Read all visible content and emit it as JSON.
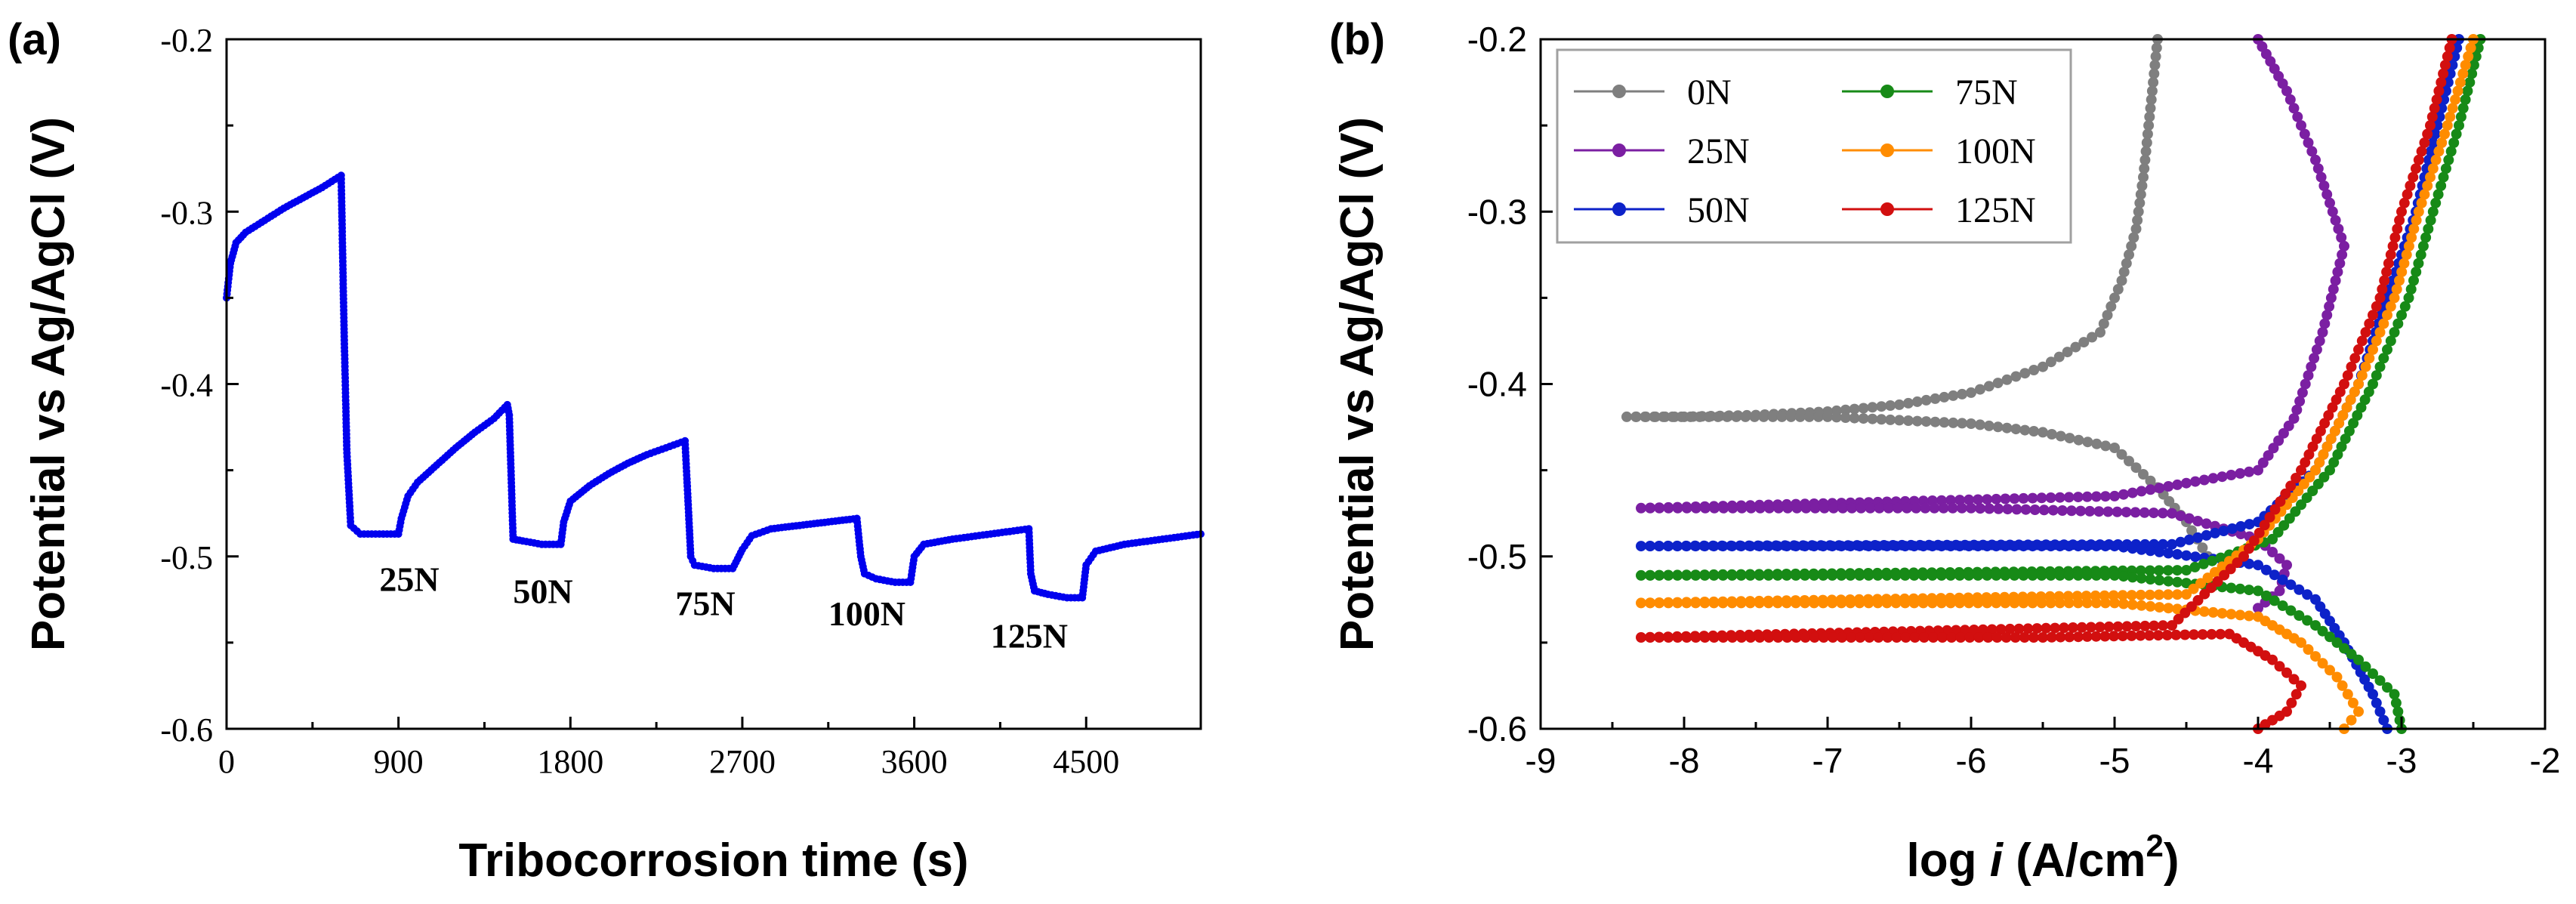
{
  "chart_data": [
    {
      "panel_label": "(a)",
      "type": "scatter",
      "xlabel": "Tribocorrosion time (s)",
      "ylabel": "Potential vs Ag/AgCl (V)",
      "xlim": [
        0,
        5100
      ],
      "ylim": [
        -0.6,
        -0.2
      ],
      "xticks": [
        "0",
        "900",
        "1800",
        "2700",
        "3600",
        "4500"
      ],
      "yticks": [
        "-0.6",
        "-0.5",
        "-0.4",
        "-0.3",
        "-0.2"
      ],
      "color": "#0000ee",
      "annotations": [
        {
          "text": "25N",
          "x": 800,
          "y": -0.52
        },
        {
          "text": "50N",
          "x": 1500,
          "y": -0.527
        },
        {
          "text": "75N",
          "x": 2350,
          "y": -0.534
        },
        {
          "text": "100N",
          "x": 3150,
          "y": -0.54
        },
        {
          "text": "125N",
          "x": 4000,
          "y": -0.553
        }
      ],
      "series": [
        {
          "name": "",
          "points": [
            [
              0,
              -0.35
            ],
            [
              20,
              -0.33
            ],
            [
              50,
              -0.318
            ],
            [
              100,
              -0.312
            ],
            [
              200,
              -0.305
            ],
            [
              300,
              -0.298
            ],
            [
              400,
              -0.292
            ],
            [
              500,
              -0.286
            ],
            [
              600,
              -0.279
            ],
            [
              615,
              -0.368
            ],
            [
              630,
              -0.44
            ],
            [
              650,
              -0.482
            ],
            [
              700,
              -0.487
            ],
            [
              800,
              -0.487
            ],
            [
              900,
              -0.487
            ],
            [
              915,
              -0.478
            ],
            [
              950,
              -0.465
            ],
            [
              1000,
              -0.457
            ],
            [
              1100,
              -0.447
            ],
            [
              1200,
              -0.437
            ],
            [
              1300,
              -0.428
            ],
            [
              1400,
              -0.42
            ],
            [
              1470,
              -0.412
            ],
            [
              1480,
              -0.418
            ],
            [
              1500,
              -0.49
            ],
            [
              1550,
              -0.491
            ],
            [
              1650,
              -0.493
            ],
            [
              1750,
              -0.493
            ],
            [
              1765,
              -0.48
            ],
            [
              1800,
              -0.468
            ],
            [
              1900,
              -0.459
            ],
            [
              2000,
              -0.452
            ],
            [
              2100,
              -0.446
            ],
            [
              2200,
              -0.441
            ],
            [
              2300,
              -0.437
            ],
            [
              2400,
              -0.433
            ],
            [
              2410,
              -0.455
            ],
            [
              2430,
              -0.5
            ],
            [
              2450,
              -0.505
            ],
            [
              2550,
              -0.507
            ],
            [
              2650,
              -0.507
            ],
            [
              2700,
              -0.496
            ],
            [
              2750,
              -0.488
            ],
            [
              2850,
              -0.484
            ],
            [
              3000,
              -0.482
            ],
            [
              3150,
              -0.48
            ],
            [
              3300,
              -0.478
            ],
            [
              3320,
              -0.5
            ],
            [
              3340,
              -0.51
            ],
            [
              3400,
              -0.513
            ],
            [
              3500,
              -0.515
            ],
            [
              3580,
              -0.515
            ],
            [
              3600,
              -0.5
            ],
            [
              3650,
              -0.493
            ],
            [
              3800,
              -0.49
            ],
            [
              4000,
              -0.487
            ],
            [
              4200,
              -0.484
            ],
            [
              4210,
              -0.51
            ],
            [
              4230,
              -0.52
            ],
            [
              4300,
              -0.522
            ],
            [
              4400,
              -0.524
            ],
            [
              4480,
              -0.524
            ],
            [
              4500,
              -0.505
            ],
            [
              4550,
              -0.497
            ],
            [
              4700,
              -0.493
            ],
            [
              4900,
              -0.49
            ],
            [
              5100,
              -0.487
            ]
          ]
        }
      ]
    },
    {
      "panel_label": "(b)",
      "type": "line",
      "xlabel": "log i (A/cm2)",
      "xlabel_parts": {
        "pre": "log ",
        "italic": "i",
        "post": " (A/cm",
        "sup": "2",
        "end": ")"
      },
      "ylabel": "Potential vs Ag/AgCl (V)",
      "xlim": [
        -9,
        -2
      ],
      "ylim": [
        -0.6,
        -0.2
      ],
      "xticks": [
        "-9",
        "-8",
        "-7",
        "-6",
        "-5",
        "-4",
        "-3",
        "-2"
      ],
      "yticks": [
        "-0.6",
        "-0.5",
        "-0.4",
        "-0.3",
        "-0.2"
      ],
      "legend": {
        "position": "top-left",
        "columns": 2
      },
      "series": [
        {
          "name": "0N",
          "color": "#7f7f7f",
          "points": [
            [
              -4.7,
              -0.2
            ],
            [
              -4.75,
              -0.24
            ],
            [
              -4.8,
              -0.28
            ],
            [
              -4.85,
              -0.31
            ],
            [
              -4.95,
              -0.34
            ],
            [
              -5.1,
              -0.37
            ],
            [
              -5.5,
              -0.39
            ],
            [
              -6.0,
              -0.405
            ],
            [
              -6.5,
              -0.412
            ],
            [
              -7.0,
              -0.416
            ],
            [
              -7.5,
              -0.418
            ],
            [
              -8.0,
              -0.419
            ],
            [
              -8.4,
              -0.419
            ],
            [
              -7.0,
              -0.419
            ],
            [
              -6.0,
              -0.423
            ],
            [
              -5.5,
              -0.428
            ],
            [
              -5.0,
              -0.437
            ],
            [
              -4.7,
              -0.46
            ],
            [
              -4.5,
              -0.48
            ],
            [
              -4.35,
              -0.5
            ]
          ]
        },
        {
          "name": "25N",
          "color": "#7b1fa2",
          "points": [
            [
              -4.0,
              -0.2
            ],
            [
              -3.8,
              -0.23
            ],
            [
              -3.6,
              -0.27
            ],
            [
              -3.4,
              -0.32
            ],
            [
              -3.55,
              -0.37
            ],
            [
              -3.75,
              -0.42
            ],
            [
              -4.0,
              -0.45
            ],
            [
              -5.0,
              -0.465
            ],
            [
              -8.3,
              -0.472
            ],
            [
              -6.0,
              -0.472
            ],
            [
              -4.6,
              -0.475
            ],
            [
              -4.0,
              -0.49
            ],
            [
              -3.8,
              -0.505
            ],
            [
              -3.85,
              -0.52
            ],
            [
              -4.0,
              -0.53
            ]
          ]
        },
        {
          "name": "50N",
          "color": "#0d22c9",
          "points": [
            [
              -2.6,
              -0.2
            ],
            [
              -2.75,
              -0.25
            ],
            [
              -2.9,
              -0.3
            ],
            [
              -3.1,
              -0.35
            ],
            [
              -3.3,
              -0.4
            ],
            [
              -3.6,
              -0.45
            ],
            [
              -4.0,
              -0.48
            ],
            [
              -4.6,
              -0.493
            ],
            [
              -8.3,
              -0.494
            ],
            [
              -5.0,
              -0.494
            ],
            [
              -4.0,
              -0.505
            ],
            [
              -3.6,
              -0.525
            ],
            [
              -3.4,
              -0.55
            ],
            [
              -3.2,
              -0.58
            ],
            [
              -3.1,
              -0.6
            ]
          ]
        },
        {
          "name": "75N",
          "color": "#178a17",
          "points": [
            [
              -2.45,
              -0.2
            ],
            [
              -2.6,
              -0.25
            ],
            [
              -2.78,
              -0.3
            ],
            [
              -2.95,
              -0.35
            ],
            [
              -3.2,
              -0.4
            ],
            [
              -3.5,
              -0.45
            ],
            [
              -3.9,
              -0.49
            ],
            [
              -4.5,
              -0.508
            ],
            [
              -8.3,
              -0.511
            ],
            [
              -5.0,
              -0.511
            ],
            [
              -4.0,
              -0.52
            ],
            [
              -3.6,
              -0.54
            ],
            [
              -3.3,
              -0.56
            ],
            [
              -3.05,
              -0.58
            ],
            [
              -3.0,
              -0.6
            ]
          ]
        },
        {
          "name": "100N",
          "color": "#ff8c00",
          "points": [
            [
              -2.5,
              -0.2
            ],
            [
              -2.68,
              -0.25
            ],
            [
              -2.88,
              -0.3
            ],
            [
              -3.05,
              -0.35
            ],
            [
              -3.3,
              -0.4
            ],
            [
              -3.6,
              -0.45
            ],
            [
              -4.0,
              -0.49
            ],
            [
              -4.5,
              -0.522
            ],
            [
              -8.3,
              -0.527
            ],
            [
              -5.0,
              -0.527
            ],
            [
              -4.0,
              -0.535
            ],
            [
              -3.7,
              -0.55
            ],
            [
              -3.45,
              -0.57
            ],
            [
              -3.3,
              -0.59
            ],
            [
              -3.4,
              -0.6
            ]
          ]
        },
        {
          "name": "125N",
          "color": "#d20f0f",
          "points": [
            [
              -2.65,
              -0.2
            ],
            [
              -2.8,
              -0.25
            ],
            [
              -3.0,
              -0.3
            ],
            [
              -3.15,
              -0.35
            ],
            [
              -3.4,
              -0.4
            ],
            [
              -3.7,
              -0.45
            ],
            [
              -4.1,
              -0.5
            ],
            [
              -4.6,
              -0.54
            ],
            [
              -8.3,
              -0.547
            ],
            [
              -5.5,
              -0.547
            ],
            [
              -4.2,
              -0.545
            ],
            [
              -3.9,
              -0.56
            ],
            [
              -3.7,
              -0.575
            ],
            [
              -3.8,
              -0.59
            ],
            [
              -4.0,
              -0.6
            ]
          ]
        }
      ]
    }
  ]
}
